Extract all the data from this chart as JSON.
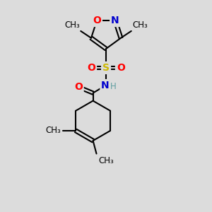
{
  "bg_color": "#dcdcdc",
  "atom_colors": {
    "C": "#000000",
    "N": "#0000cd",
    "O": "#ff0000",
    "S": "#ccb800",
    "H": "#5f9ea0"
  },
  "bond_color": "#000000",
  "bond_width": 1.5,
  "font_size_atom": 10,
  "font_size_methyl": 8.5,
  "xlim": [
    0,
    10
  ],
  "ylim": [
    0,
    12
  ]
}
